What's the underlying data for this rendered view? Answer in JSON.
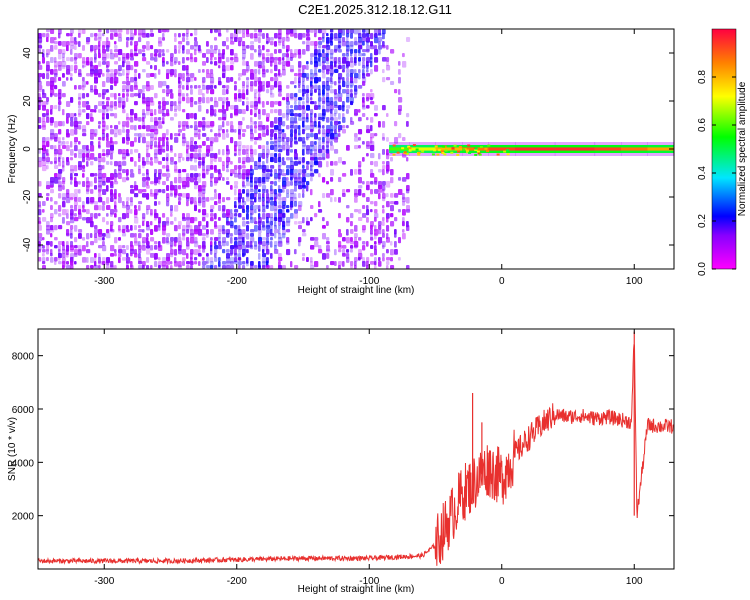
{
  "figure_title": "C2E1.2025.312.18.12.G11",
  "chart_data": [
    {
      "type": "heatmap",
      "xlabel": "Height of straight line (km)",
      "ylabel": "Frequency (Hz)",
      "xlim": [
        -350,
        130
      ],
      "ylim": [
        -50,
        50
      ],
      "xticks": [
        -300,
        -200,
        -100,
        0,
        100
      ],
      "yticks": [
        -40,
        -20,
        0,
        20,
        40
      ],
      "colorbar": {
        "label": "Normalized spectral amplitude",
        "range": [
          0,
          1
        ],
        "ticks": [
          0.0,
          0.2,
          0.4,
          0.6,
          0.8
        ]
      },
      "noise_region": {
        "x_range": [
          -350,
          -70
        ],
        "y_range": [
          -50,
          50
        ]
      },
      "diagonal_band": {
        "from": {
          "x": -200,
          "y": -45
        },
        "to": {
          "x": -115,
          "y": 45
        }
      },
      "signal_band": {
        "center_frequency": 0,
        "points": [
          {
            "x": -85,
            "amplitude": 0.55
          },
          {
            "x": -70,
            "amplitude": 0.65
          },
          {
            "x": -50,
            "amplitude": 0.75
          },
          {
            "x": -30,
            "amplitude": 0.85
          },
          {
            "x": -10,
            "amplitude": 0.9
          },
          {
            "x": 10,
            "amplitude": 0.95
          },
          {
            "x": 40,
            "amplitude": 0.95
          },
          {
            "x": 70,
            "amplitude": 0.95
          },
          {
            "x": 90,
            "amplitude": 0.9
          },
          {
            "x": 110,
            "amplitude": 0.85
          },
          {
            "x": 130,
            "amplitude": 0.8
          }
        ]
      }
    },
    {
      "type": "line",
      "xlabel": "Height of straight line (km)",
      "ylabel": "SNR (10 * v/v)",
      "xlim": [
        -350,
        130
      ],
      "ylim": [
        0,
        9000
      ],
      "xticks": [
        -300,
        -200,
        -100,
        0,
        100
      ],
      "yticks": [
        2000,
        4000,
        6000,
        8000
      ],
      "color": "#e8302e",
      "series": [
        {
          "x": [
            -350,
            -300,
            -250,
            -200,
            -150,
            -100,
            -80,
            -60,
            -50,
            -40,
            -30,
            -20,
            -10,
            0,
            10,
            20,
            30,
            40,
            50,
            60,
            70,
            80,
            90,
            98,
            100,
            102,
            110,
            120,
            130
          ],
          "y": [
            300,
            300,
            300,
            350,
            400,
            400,
            450,
            500,
            900,
            1800,
            2800,
            3300,
            3800,
            3400,
            4300,
            4900,
            5400,
            5800,
            5700,
            5750,
            5650,
            5700,
            5600,
            5500,
            8900,
            2000,
            5400,
            5350,
            5350
          ]
        }
      ],
      "spikes": [
        {
          "x": -22,
          "y": 6600
        },
        {
          "x": -15,
          "y": 5500
        },
        {
          "x": 100,
          "y": 8900
        },
        {
          "x": 100,
          "y": 2000
        }
      ]
    }
  ]
}
